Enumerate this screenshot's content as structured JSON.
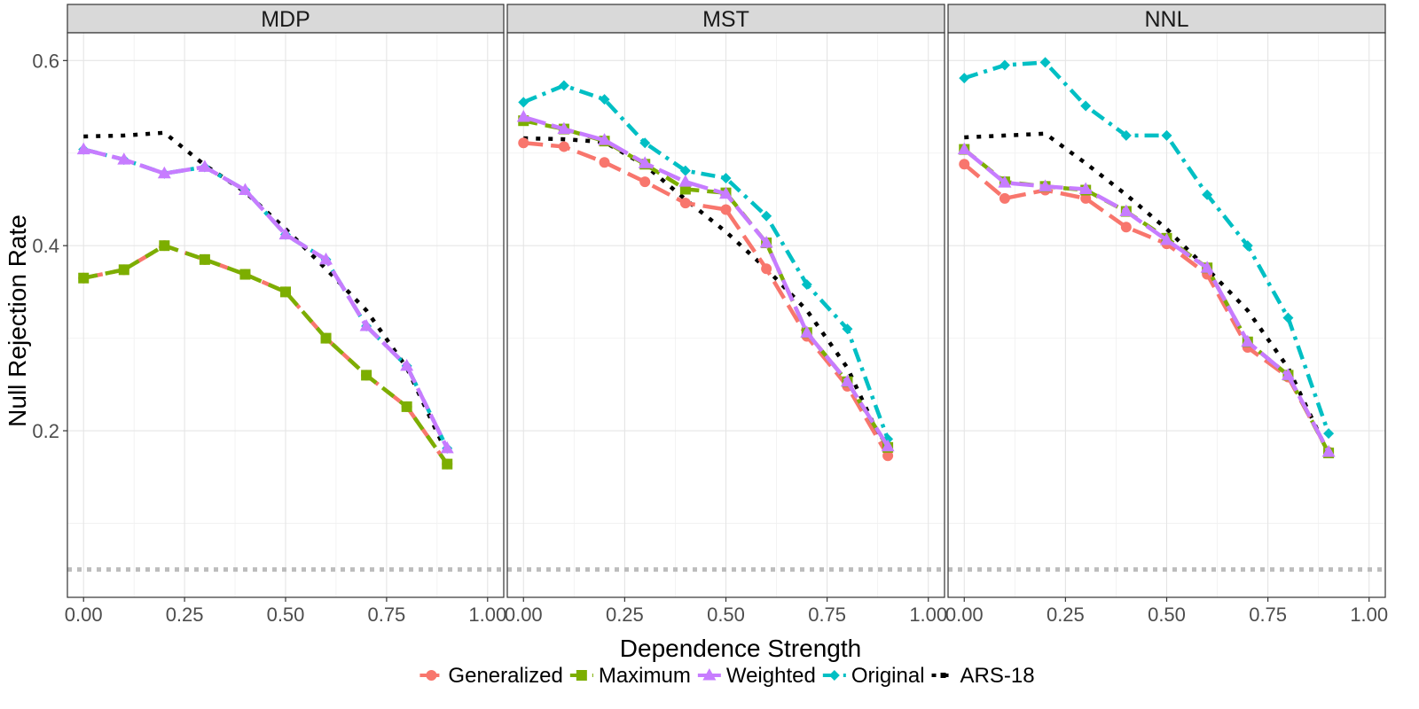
{
  "chart_data": {
    "type": "line",
    "xlabel": "Dependence Strength",
    "ylabel": "Null Rejection Rate",
    "xlim": [
      -0.04,
      1.04
    ],
    "ylim": [
      0.02,
      0.63
    ],
    "x_ticks": [
      0.0,
      0.25,
      0.5,
      0.75,
      1.0
    ],
    "x_tick_labels": [
      "0.00",
      "0.25",
      "0.50",
      "0.75",
      "1.00"
    ],
    "y_ticks": [
      0.2,
      0.4,
      0.6
    ],
    "y_tick_labels": [
      "0.2",
      "0.4",
      "0.6"
    ],
    "reference_line": {
      "y": 0.05,
      "color": "#bdbdbd",
      "style": "dotted"
    },
    "grid": true,
    "legend_position": "bottom",
    "x": [
      0.0,
      0.1,
      0.2,
      0.3,
      0.4,
      0.5,
      0.6,
      0.7,
      0.8,
      0.9
    ],
    "series_styles": [
      {
        "name": "Generalized",
        "color": "#F8766D",
        "marker": "circle",
        "dash": "long-dash"
      },
      {
        "name": "Maximum",
        "color": "#7CAE00",
        "marker": "square",
        "dash": "dash"
      },
      {
        "name": "Weighted",
        "color": "#C77CFF",
        "marker": "triangle",
        "dash": "long-dash-2"
      },
      {
        "name": "Original",
        "color": "#00BFC4",
        "marker": "diamond",
        "dash": "dash-dot"
      },
      {
        "name": "ARS-18",
        "color": "#000000",
        "marker": "none",
        "dash": "dotted"
      }
    ],
    "panels": [
      {
        "title": "MDP",
        "series": [
          {
            "name": "Generalized",
            "values": [
              0.365,
              0.374,
              0.4,
              0.385,
              0.369,
              0.35,
              0.3,
              0.26,
              0.226,
              0.164
            ]
          },
          {
            "name": "Maximum",
            "values": [
              0.365,
              0.374,
              0.4,
              0.385,
              0.369,
              0.35,
              0.3,
              0.26,
              0.226,
              0.164
            ]
          },
          {
            "name": "Weighted",
            "values": [
              0.504,
              0.493,
              0.478,
              0.485,
              0.46,
              0.412,
              0.385,
              0.313,
              0.27,
              0.181
            ]
          },
          {
            "name": "Original",
            "values": [
              0.504,
              0.493,
              0.478,
              0.485,
              0.46,
              0.412,
              0.385,
              0.313,
              0.27,
              0.181
            ]
          },
          {
            "name": "ARS-18",
            "values": [
              0.518,
              0.519,
              0.522,
              0.487,
              0.458,
              0.418,
              0.375,
              0.33,
              0.268,
              0.175
            ]
          }
        ]
      },
      {
        "title": "MST",
        "series": [
          {
            "name": "Generalized",
            "values": [
              0.511,
              0.507,
              0.49,
              0.469,
              0.446,
              0.439,
              0.375,
              0.302,
              0.248,
              0.173
            ]
          },
          {
            "name": "Maximum",
            "values": [
              0.535,
              0.526,
              0.513,
              0.488,
              0.461,
              0.457,
              0.403,
              0.306,
              0.253,
              0.182
            ]
          },
          {
            "name": "Weighted",
            "values": [
              0.539,
              0.526,
              0.514,
              0.489,
              0.469,
              0.456,
              0.403,
              0.306,
              0.253,
              0.183
            ]
          },
          {
            "name": "Original",
            "values": [
              0.555,
              0.573,
              0.558,
              0.511,
              0.481,
              0.473,
              0.432,
              0.358,
              0.31,
              0.191
            ]
          },
          {
            "name": "ARS-18",
            "values": [
              0.516,
              0.515,
              0.512,
              0.487,
              0.45,
              0.415,
              0.375,
              0.33,
              0.268,
              0.174
            ]
          }
        ]
      },
      {
        "title": "NNL",
        "series": [
          {
            "name": "Generalized",
            "values": [
              0.488,
              0.451,
              0.46,
              0.451,
              0.42,
              0.402,
              0.369,
              0.29,
              0.258,
              0.177
            ]
          },
          {
            "name": "Maximum",
            "values": [
              0.504,
              0.469,
              0.464,
              0.46,
              0.437,
              0.408,
              0.376,
              0.296,
              0.26,
              0.176
            ]
          },
          {
            "name": "Weighted",
            "values": [
              0.504,
              0.468,
              0.464,
              0.461,
              0.437,
              0.406,
              0.376,
              0.296,
              0.26,
              0.177
            ]
          },
          {
            "name": "Original",
            "values": [
              0.581,
              0.595,
              0.598,
              0.551,
              0.519,
              0.519,
              0.455,
              0.4,
              0.322,
              0.197
            ]
          },
          {
            "name": "ARS-18",
            "values": [
              0.517,
              0.519,
              0.521,
              0.489,
              0.455,
              0.418,
              0.375,
              0.33,
              0.268,
              0.175
            ]
          }
        ]
      }
    ]
  }
}
